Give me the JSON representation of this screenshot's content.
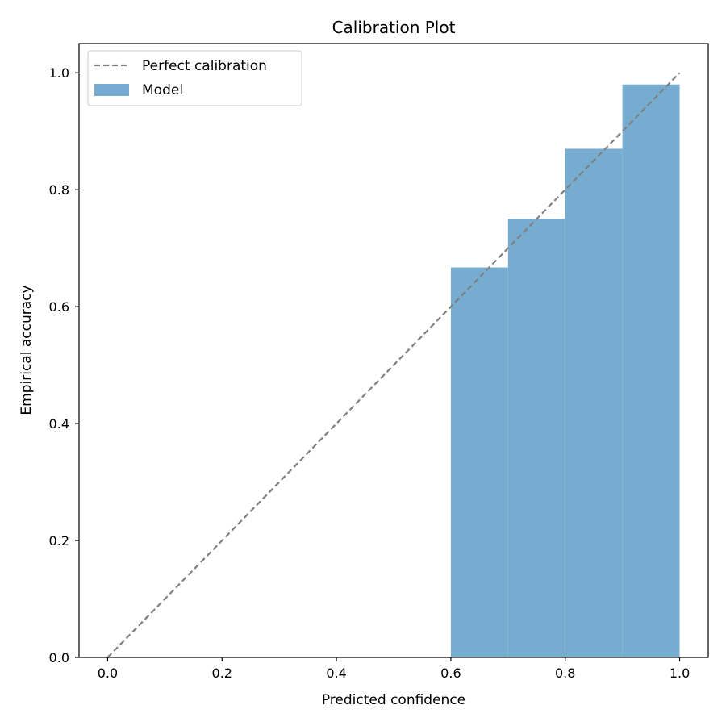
{
  "chart_data": {
    "type": "bar",
    "title": "Calibration Plot",
    "xlabel": "Predicted confidence",
    "ylabel": "Empirical accuracy",
    "xlim": [
      -0.05,
      1.05
    ],
    "ylim": [
      0.0,
      1.05
    ],
    "xticks": [
      "0.0",
      "0.2",
      "0.4",
      "0.6",
      "0.8",
      "1.0"
    ],
    "yticks": [
      "0.0",
      "0.2",
      "0.4",
      "0.6",
      "0.8",
      "1.0"
    ],
    "grid": false,
    "legend": {
      "placement": "top-left",
      "entries": [
        {
          "label": "Perfect calibration",
          "kind": "line",
          "style": "dashed",
          "color": "#808080"
        },
        {
          "label": "Model",
          "kind": "patch",
          "color": "#77acd1"
        }
      ]
    },
    "series": [
      {
        "name": "Model",
        "kind": "bar",
        "color": "#77acd1",
        "bins": [
          {
            "x0": 0.6,
            "x1": 0.7,
            "value": 0.667
          },
          {
            "x0": 0.7,
            "x1": 0.8,
            "value": 0.75
          },
          {
            "x0": 0.8,
            "x1": 0.9,
            "value": 0.87
          },
          {
            "x0": 0.9,
            "x1": 1.0,
            "value": 0.98
          }
        ]
      },
      {
        "name": "Perfect calibration",
        "kind": "line",
        "style": "dashed",
        "color": "#808080",
        "x": [
          0.0,
          1.0
        ],
        "y": [
          0.0,
          1.0
        ]
      }
    ]
  }
}
